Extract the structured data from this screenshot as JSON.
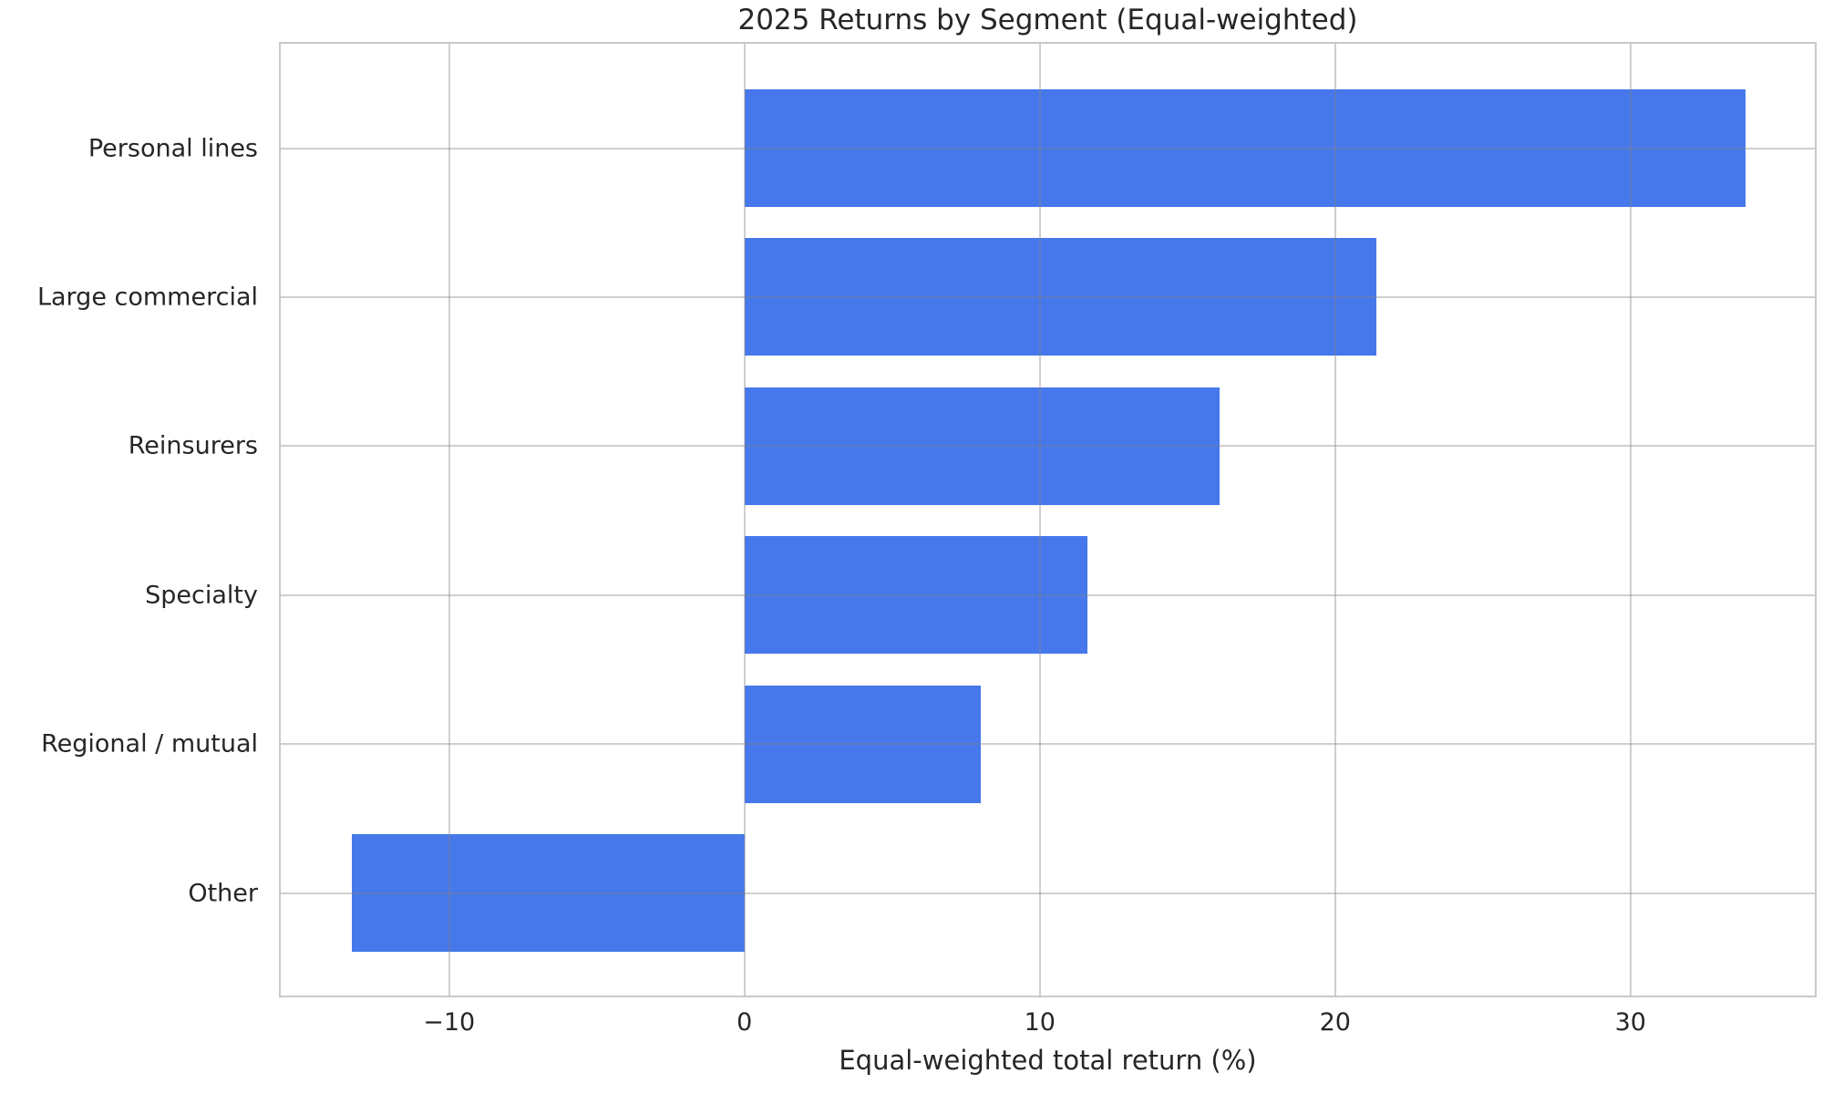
{
  "chart_data": {
    "type": "bar",
    "orientation": "horizontal",
    "title": "2025 Returns by Segment (Equal-weighted)",
    "xlabel": "Equal-weighted total return (%)",
    "categories": [
      "Personal lines",
      "Large commercial",
      "Reinsurers",
      "Specialty",
      "Regional / mutual",
      "Other"
    ],
    "values": [
      33.9,
      21.4,
      16.1,
      11.6,
      8.0,
      -13.3
    ],
    "xticks": [
      -10,
      0,
      10,
      20,
      30
    ],
    "xlim": [
      -15.7,
      36.24
    ],
    "grid": true,
    "legend_position": "none",
    "colors": {
      "bar": "#4678EB",
      "grid": "#cbcbcb",
      "spine": "#c9c9c9",
      "text": "#262626",
      "background": "#ffffff"
    }
  }
}
